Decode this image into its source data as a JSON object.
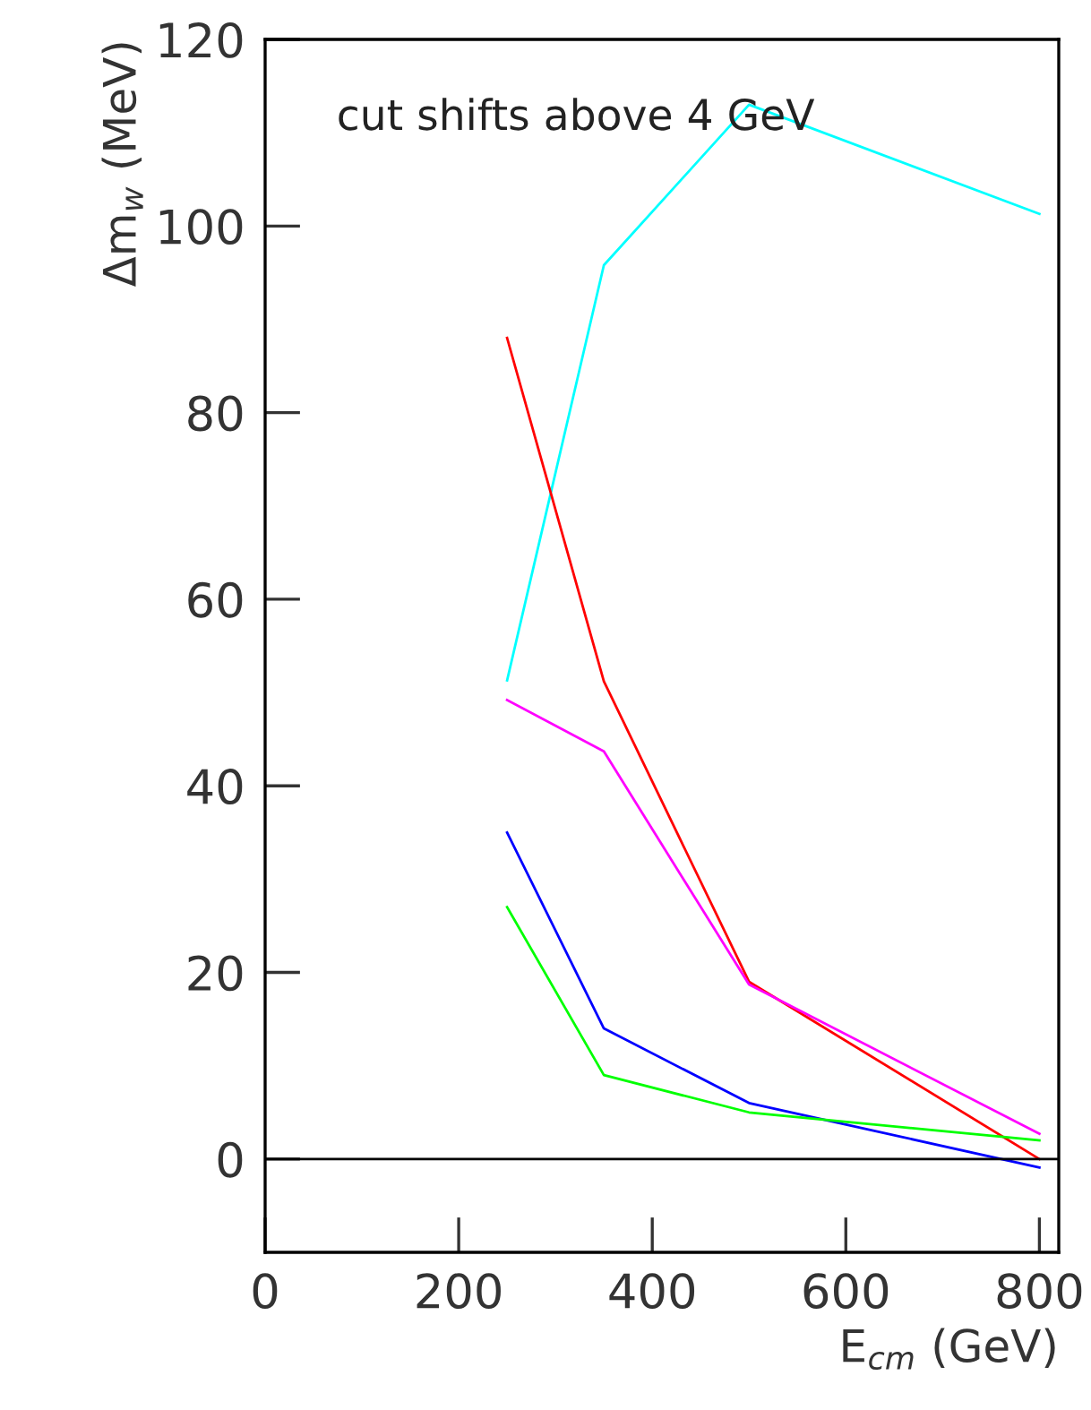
{
  "chart_data": {
    "type": "line",
    "xlabel": "E$_{cm}$ (GeV)",
    "ylabel": "Δm$_{w}$ (MeV)",
    "annotations": [
      "cut shifts above 4 GeV"
    ],
    "x": [
      250,
      350,
      500,
      800
    ],
    "series": [
      {
        "color": "#00ffff",
        "values": [
          51.3,
          95.8,
          113,
          101.3
        ]
      },
      {
        "color": "#ff0000",
        "values": [
          88,
          51.2,
          19,
          0
        ]
      },
      {
        "color": "#ff00ff",
        "values": [
          49.2,
          43.7,
          18.7,
          2.7
        ]
      },
      {
        "color": "#0000ff",
        "values": [
          35,
          14,
          6,
          -0.9
        ]
      },
      {
        "color": "#00ff00",
        "values": [
          27,
          9,
          5,
          2
        ]
      }
    ],
    "xlim": [
      0,
      820
    ],
    "ylim": [
      -10,
      120
    ],
    "xticks": [
      0,
      200,
      400,
      600,
      800
    ],
    "yticks": [
      0,
      20,
      40,
      60,
      80,
      100,
      120
    ],
    "ref_lines": [
      {
        "axis": "y",
        "value": 0,
        "color": "#000000"
      }
    ],
    "grid": false,
    "legend": false
  }
}
